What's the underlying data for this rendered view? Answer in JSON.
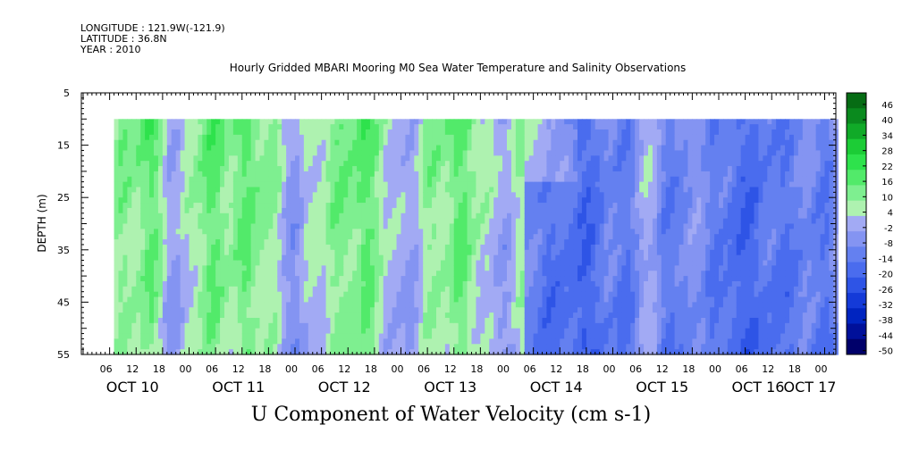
{
  "header": {
    "longitude": "LONGITUDE : 121.9W(-121.9)",
    "latitude": "LATITUDE : 36.8N",
    "year": "YEAR : 2010"
  },
  "title": "Hourly Gridded MBARI Mooring M0 Sea Water Temperature and Salinity Observations",
  "chart_data": {
    "type": "heatmap",
    "title": "Hourly Gridded MBARI Mooring M0 Sea Water Temperature and Salinity Observations",
    "xlabel": "U Component of Water Velocity (cm s-1)",
    "ylabel": "DEPTH (m)",
    "ylim": [
      5,
      55
    ],
    "y_inverted": true,
    "y_ticks": [
      5,
      15,
      25,
      35,
      45,
      55
    ],
    "data_depth_range": [
      10,
      55
    ],
    "x_range_hours": [
      0,
      174
    ],
    "x_hour_ticks": [
      "06",
      "12",
      "18",
      "00",
      "06",
      "12",
      "18",
      "00",
      "06",
      "12",
      "18",
      "00",
      "06",
      "12",
      "18",
      "00",
      "06",
      "12",
      "18",
      "00",
      "06",
      "12",
      "18",
      "00",
      "06",
      "12",
      "18",
      "00"
    ],
    "x_day_labels": [
      "OCT 10",
      "OCT 11",
      "OCT 12",
      "OCT 13",
      "OCT 14",
      "OCT 15",
      "OCT 16",
      "OCT 17"
    ],
    "colorbar": {
      "labels": [
        "46",
        "40",
        "34",
        "28",
        "22",
        "16",
        "10",
        "4",
        "-2",
        "-8",
        "-14",
        "-20",
        "-26",
        "-32",
        "-38",
        "-44",
        "-50"
      ],
      "range": [
        -50,
        50
      ]
    },
    "pattern": "Positive U (green, about 4 to 16 cm/s) dominates Oct 10 to mid Oct 13 in banded columns; negative U (blue, about -2 to -26 cm/s) dominates from late Oct 13 through Oct 16, strongest near Oct 16 06h and deep layers around Oct 14 06h."
  },
  "colors": {
    "green_strong": "#22e03c",
    "green": "#5cef7c",
    "green_pale": "#9ef4a8",
    "blue_pale": "#b0b4f4",
    "blue": "#8c9cf4",
    "blue_mid": "#6c84ec",
    "blue_dark": "#3858e0"
  }
}
